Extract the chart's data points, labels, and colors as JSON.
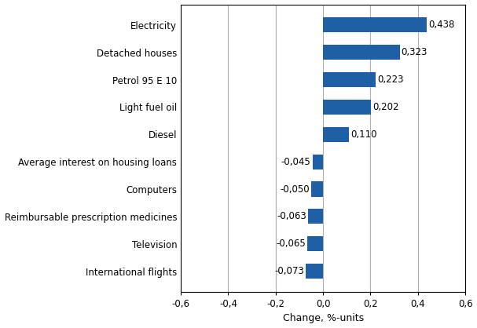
{
  "categories": [
    "International flights",
    "Television",
    "Reimbursable prescription medicines",
    "Computers",
    "Average interest on housing loans",
    "Diesel",
    "Light fuel oil",
    "Petrol 95 E 10",
    "Detached houses",
    "Electricity"
  ],
  "values": [
    -0.073,
    -0.065,
    -0.063,
    -0.05,
    -0.045,
    0.11,
    0.202,
    0.223,
    0.323,
    0.438
  ],
  "bar_color": "#1F5FA6",
  "xlim": [
    -0.6,
    0.6
  ],
  "xticks": [
    -0.6,
    -0.4,
    -0.2,
    0.0,
    0.2,
    0.4,
    0.6
  ],
  "xtick_labels": [
    "-0,6",
    "-0,4",
    "-0,2",
    "0,0",
    "0,2",
    "0,4",
    "0,6"
  ],
  "xlabel": "Change, %-units",
  "value_labels": [
    "-0,073",
    "-0,065",
    "-0,063",
    "-0,050",
    "-0,045",
    "0,110",
    "0,202",
    "0,223",
    "0,323",
    "0,438"
  ],
  "background_color": "#ffffff",
  "grid_color": "#b0b0b0",
  "label_fontsize": 8.5,
  "tick_fontsize": 8.5,
  "xlabel_fontsize": 9,
  "bar_height": 0.55
}
